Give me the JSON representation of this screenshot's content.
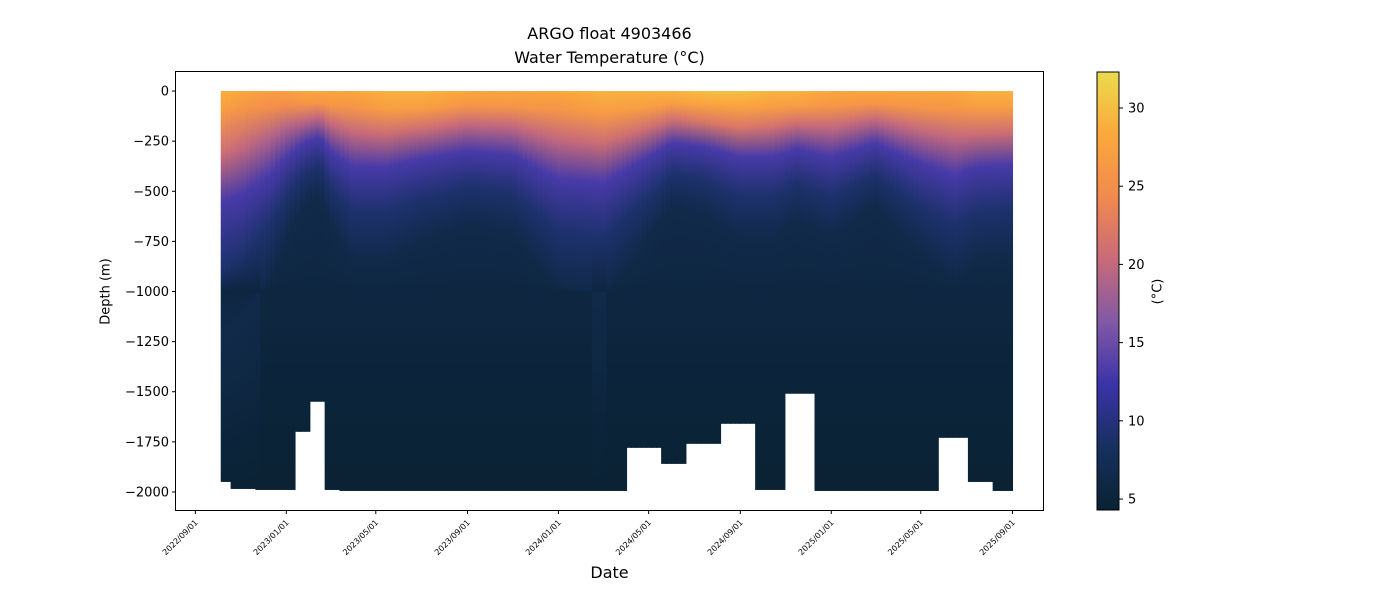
{
  "chart_data": {
    "type": "heatmap",
    "title": "ARGO float 4903466",
    "subtitle": "Water Temperature (°C)",
    "xlabel": "Date",
    "ylabel": "Depth (m)",
    "colorbar_label": "(°C)",
    "x_ticks": [
      "2022/09/01",
      "2023/01/01",
      "2023/05/01",
      "2023/09/01",
      "2024/01/01",
      "2024/05/01",
      "2024/09/01",
      "2025/01/01",
      "2025/05/01",
      "2025/09/01"
    ],
    "y_ticks": [
      0,
      -250,
      -500,
      -750,
      -1000,
      -1250,
      -1500,
      -1750,
      -2000
    ],
    "ylim": [
      -2090,
      95
    ],
    "xlim": [
      "2022-08-06",
      "2025-10-12"
    ],
    "colorbar_ticks": [
      5,
      10,
      15,
      20,
      25,
      30
    ],
    "colorbar_range": [
      4.3,
      32.3
    ],
    "colormap": [
      "#0a2232",
      "#17305f",
      "#3b33a8",
      "#8159a6",
      "#c86a7a",
      "#f2894e",
      "#fba83c",
      "#ecdb4c"
    ],
    "series": [
      {
        "values": [
          {
            "date": "2022-10-05",
            "surface_temp": 29,
            "mixed_depth": 90,
            "thermocline": 560,
            "max_depth": 1950
          },
          {
            "date": "2022-11-01",
            "surface_temp": 28,
            "mixed_depth": 85,
            "thermocline": 520,
            "max_depth": 1985
          },
          {
            "date": "2022-12-10",
            "surface_temp": 27,
            "mixed_depth": 80,
            "thermocline": 420,
            "max_depth": 1990
          },
          {
            "date": "2023-01-01",
            "surface_temp": 27,
            "mixed_depth": 70,
            "thermocline": 330,
            "max_depth": 1990
          },
          {
            "date": "2023-01-25",
            "surface_temp": 28,
            "mixed_depth": 60,
            "thermocline": 260,
            "max_depth": 1700
          },
          {
            "date": "2023-02-15",
            "surface_temp": 28,
            "mixed_depth": 60,
            "thermocline": 230,
            "max_depth": 1550
          },
          {
            "date": "2023-03-01",
            "surface_temp": 28,
            "mixed_depth": 70,
            "thermocline": 300,
            "max_depth": 1990
          },
          {
            "date": "2023-04-01",
            "surface_temp": 28,
            "mixed_depth": 80,
            "thermocline": 380,
            "max_depth": 1995
          },
          {
            "date": "2023-05-15",
            "surface_temp": 29,
            "mixed_depth": 90,
            "thermocline": 380,
            "max_depth": 1995
          },
          {
            "date": "2023-07-01",
            "surface_temp": 29,
            "mixed_depth": 85,
            "thermocline": 340,
            "max_depth": 1995
          },
          {
            "date": "2023-09-01",
            "surface_temp": 28,
            "mixed_depth": 70,
            "thermocline": 300,
            "max_depth": 1995
          },
          {
            "date": "2023-11-01",
            "surface_temp": 28,
            "mixed_depth": 75,
            "thermocline": 320,
            "max_depth": 1995
          },
          {
            "date": "2024-01-01",
            "surface_temp": 28,
            "mixed_depth": 90,
            "thermocline": 440,
            "max_depth": 1995
          },
          {
            "date": "2024-03-01",
            "surface_temp": 29,
            "mixed_depth": 100,
            "thermocline": 460,
            "max_depth": 1995
          },
          {
            "date": "2024-05-01",
            "surface_temp": 29,
            "mixed_depth": 80,
            "thermocline": 330,
            "max_depth": 1780
          },
          {
            "date": "2024-06-01",
            "surface_temp": 29,
            "mixed_depth": 60,
            "thermocline": 260,
            "max_depth": 1860
          },
          {
            "date": "2024-07-15",
            "surface_temp": 30,
            "mixed_depth": 60,
            "thermocline": 280,
            "max_depth": 1760
          },
          {
            "date": "2024-09-01",
            "surface_temp": 30,
            "mixed_depth": 70,
            "thermocline": 330,
            "max_depth": 1660
          },
          {
            "date": "2024-10-15",
            "surface_temp": 29,
            "mixed_depth": 80,
            "thermocline": 330,
            "max_depth": 1990
          },
          {
            "date": "2024-11-15",
            "surface_temp": 29,
            "mixed_depth": 70,
            "thermocline": 290,
            "max_depth": 1510
          },
          {
            "date": "2025-01-01",
            "surface_temp": 28,
            "mixed_depth": 75,
            "thermocline": 330,
            "max_depth": 1995
          },
          {
            "date": "2025-03-01",
            "surface_temp": 28,
            "mixed_depth": 60,
            "thermocline": 260,
            "max_depth": 1995
          },
          {
            "date": "2025-05-01",
            "surface_temp": 28,
            "mixed_depth": 80,
            "thermocline": 360,
            "max_depth": 1995
          },
          {
            "date": "2025-06-15",
            "surface_temp": 28,
            "mixed_depth": 90,
            "thermocline": 420,
            "max_depth": 1730
          },
          {
            "date": "2025-07-15",
            "surface_temp": 29,
            "mixed_depth": 80,
            "thermocline": 380,
            "max_depth": 1950
          },
          {
            "date": "2025-09-01",
            "surface_temp": 29,
            "mixed_depth": 80,
            "thermocline": 370,
            "max_depth": 1995
          }
        ]
      }
    ],
    "grid": false
  }
}
